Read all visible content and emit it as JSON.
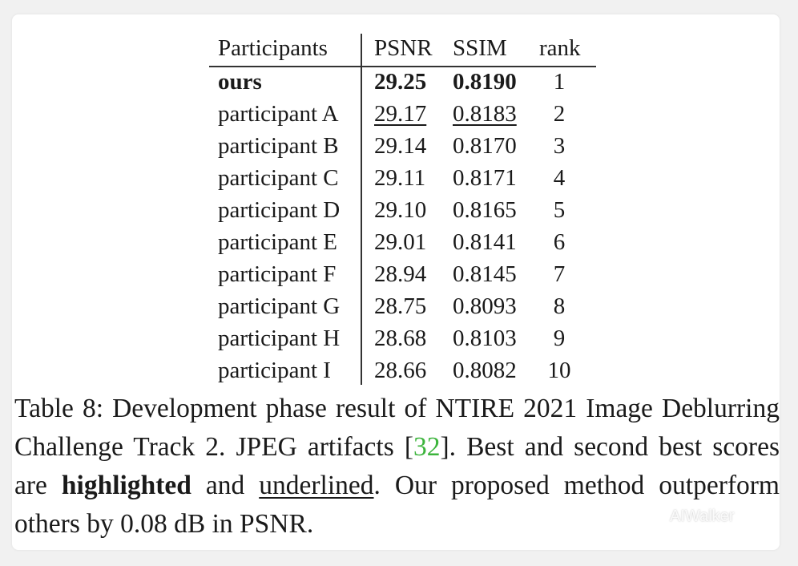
{
  "table": {
    "headers": {
      "participants": "Participants",
      "psnr": "PSNR",
      "ssim": "SSIM",
      "rank": "rank"
    },
    "rows": [
      {
        "name": "ours",
        "psnr": "29.25",
        "ssim": "0.8190",
        "rank": "1",
        "style": "best"
      },
      {
        "name": "participant A",
        "psnr": "29.17",
        "ssim": "0.8183",
        "rank": "2",
        "style": "second"
      },
      {
        "name": "participant B",
        "psnr": "29.14",
        "ssim": "0.8170",
        "rank": "3",
        "style": "normal"
      },
      {
        "name": "participant C",
        "psnr": "29.11",
        "ssim": "0.8171",
        "rank": "4",
        "style": "normal"
      },
      {
        "name": "participant D",
        "psnr": "29.10",
        "ssim": "0.8165",
        "rank": "5",
        "style": "normal"
      },
      {
        "name": "participant E",
        "psnr": "29.01",
        "ssim": "0.8141",
        "rank": "6",
        "style": "normal"
      },
      {
        "name": "participant F",
        "psnr": "28.94",
        "ssim": "0.8145",
        "rank": "7",
        "style": "normal"
      },
      {
        "name": "participant G",
        "psnr": "28.75",
        "ssim": "0.8093",
        "rank": "8",
        "style": "normal"
      },
      {
        "name": "participant H",
        "psnr": "28.68",
        "ssim": "0.8103",
        "rank": "9",
        "style": "normal"
      },
      {
        "name": "participant I",
        "psnr": "28.66",
        "ssim": "0.8082",
        "rank": "10",
        "style": "normal"
      }
    ]
  },
  "caption": {
    "part1": "Table 8: Development phase result of NTIRE 2021 Image Deblurring Challenge Track 2. JPEG artifacts [",
    "ref": "32",
    "part2": "]. Best and second best scores are ",
    "highlighted": "highlighted",
    "part3": " and ",
    "underlined": "underlined",
    "part4": ". Our proposed method outperform others by 0.08 dB in PSNR."
  },
  "watermark": {
    "text": "AIWalker",
    "icon": "wechat-icon"
  },
  "colors": {
    "reference_link": "#3cb43c",
    "background": "#f1f1f1",
    "card": "#ffffff"
  }
}
